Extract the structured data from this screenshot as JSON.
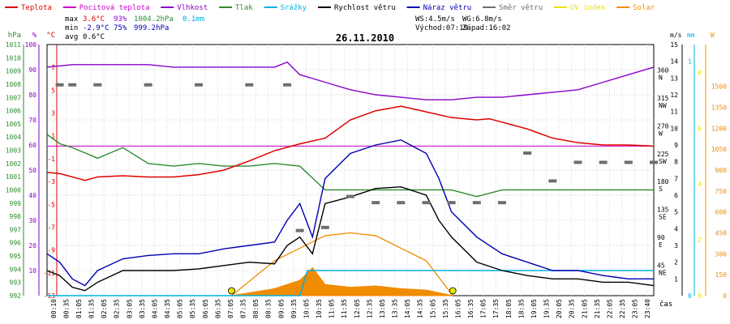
{
  "legend": [
    {
      "label": "Teplota",
      "color": "#dd0000"
    },
    {
      "label": "Pocitová teplota",
      "color": "#cc00cc"
    },
    {
      "label": "Vlhkost",
      "color": "#8a00c8"
    },
    {
      "label": "Tlak",
      "color": "#2e8b2e"
    },
    {
      "label": "Srážky",
      "color": "#00b0e0"
    },
    {
      "label": "Rychlost větru",
      "color": "#000000"
    },
    {
      "label": "Náraz větru",
      "color": "#0000b0"
    },
    {
      "label": "Směr větru",
      "color": "#6e6e6e"
    },
    {
      "label": "UV index",
      "color": "#e6e600"
    },
    {
      "label": "Solar",
      "color": "#f08c00"
    }
  ],
  "stats": {
    "max": {
      "label": "max",
      "temp": "3.6°C",
      "hum": "93%",
      "press": "1004.2hPa",
      "rain": "0.1mm"
    },
    "min": {
      "label": "min",
      "temp": "-2.9°C",
      "hum": "75%",
      "press": "999.2hPa"
    },
    "avg": {
      "label": "avg",
      "temp": "0.6°C"
    }
  },
  "wind_info": {
    "ws": "WS:4.5m/s",
    "wg": "WG:6.8m/s",
    "sunrise": "Východ:07:19",
    "sunset": "Západ:16:02"
  },
  "date": "26.11.2010",
  "x_axis_label": "čas",
  "colors": {
    "temp": "#dd0000",
    "feels": "#cc00cc",
    "hum": "#8a00c8",
    "press": "#2e8b2e",
    "rain": "#00b0e0",
    "wind": "#000000",
    "gust": "#0000b0",
    "dir": "#6e6e6e",
    "uv": "#e6e600",
    "solar": "#f08c00",
    "hpa_axis": "#2e8b2e",
    "pct_axis": "#8a00c8",
    "temp_axis": "#dd0000",
    "ms_axis": "#000000",
    "mm_axis": "#00b0e0",
    "w_axis": "#f08c00",
    "grid": "#c8c8c8",
    "frame": "#000000"
  },
  "chart_data": {
    "type": "line",
    "title": "26.11.2010",
    "x_ticks": [
      "00:10",
      "00:35",
      "01:05",
      "01:35",
      "02:05",
      "02:35",
      "03:05",
      "03:35",
      "04:05",
      "04:35",
      "05:05",
      "05:35",
      "06:05",
      "06:35",
      "07:05",
      "07:35",
      "08:05",
      "08:35",
      "09:05",
      "09:35",
      "10:05",
      "10:35",
      "11:05",
      "11:35",
      "12:05",
      "12:35",
      "13:05",
      "13:35",
      "14:05",
      "14:35",
      "15:05",
      "15:35",
      "16:05",
      "16:35",
      "17:05",
      "17:35",
      "18:05",
      "18:35",
      "19:05",
      "19:35",
      "20:05",
      "20:35",
      "21:05",
      "21:35",
      "22:05",
      "22:35",
      "23:05",
      "23:40"
    ],
    "axes": {
      "hpa": {
        "label": "hPa",
        "ticks": [
          "992",
          "993",
          "994",
          "995",
          "996",
          "997",
          "998",
          "999",
          "1000",
          "1001",
          "1002",
          "1003",
          "1004",
          "1005",
          "1006",
          "1007",
          "1008",
          "1009",
          "1010",
          "1011"
        ],
        "range": [
          992,
          1011
        ]
      },
      "pct": {
        "label": "%",
        "ticks": [
          "10",
          "20",
          "30",
          "40",
          "50",
          "60",
          "70",
          "80",
          "90",
          "100"
        ],
        "range": [
          0,
          100
        ]
      },
      "temp": {
        "label": "°C",
        "ticks": [
          "-13",
          "-11",
          "-9",
          "-7",
          "-5",
          "-3",
          "-1",
          "1",
          "3",
          "5",
          "7"
        ],
        "range": [
          -13,
          9
        ]
      },
      "dir": {
        "ticks": [
          "360",
          "315",
          "270",
          "225",
          "180",
          "135",
          "90",
          "45"
        ],
        "names": [
          "N",
          "NW",
          "W",
          "SW",
          "S",
          "SE",
          "E",
          "NE"
        ],
        "range": [
          0,
          405
        ]
      },
      "ms": {
        "label": "m/s",
        "ticks": [
          "1",
          "2",
          "3",
          "4",
          "5",
          "6",
          "7",
          "8",
          "9",
          "10",
          "11",
          "12",
          "13",
          "14",
          "15"
        ],
        "range": [
          0,
          15
        ]
      },
      "mm": {
        "label": "mm",
        "ticks": [
          "0",
          "1"
        ],
        "range": [
          0,
          1
        ]
      },
      "w": {
        "label": "W",
        "ticks": [
          "0",
          "150",
          "300",
          "450",
          "600",
          "750",
          "900",
          "1050",
          "1200",
          "1350",
          "1500"
        ],
        "range": [
          0,
          1500
        ]
      },
      "uv": {
        "ticks": [
          "0",
          "2",
          "4",
          "6",
          "8"
        ],
        "range": [
          0,
          9
        ]
      }
    },
    "series": [
      {
        "name": "Teplota",
        "unit": "°C",
        "x": [
          0,
          0.5,
          1,
          1.5,
          2,
          3,
          4,
          5,
          6,
          7,
          8,
          9,
          10,
          11,
          12,
          13,
          14,
          15,
          16,
          17,
          17.5,
          18,
          19,
          20,
          21,
          22,
          23,
          24
        ],
        "values": [
          -2.2,
          -2.3,
          -2.6,
          -2.9,
          -2.6,
          -2.5,
          -2.6,
          -2.6,
          -2.4,
          -2.0,
          -1.2,
          -0.3,
          0.3,
          0.8,
          2.4,
          3.2,
          3.6,
          3.1,
          2.6,
          2.4,
          2.5,
          2.2,
          1.6,
          0.8,
          0.4,
          0.2,
          0.2,
          0.1
        ]
      },
      {
        "name": "Vlhkost",
        "unit": "%",
        "x": [
          0,
          1,
          2,
          3,
          4,
          5,
          6,
          7,
          8,
          9,
          9.5,
          10,
          11,
          12,
          13,
          14,
          15,
          16,
          17,
          18,
          19,
          20,
          21,
          22,
          23,
          24
        ],
        "values": [
          91,
          92,
          92,
          92,
          92,
          91,
          91,
          91,
          91,
          91,
          93,
          88,
          85,
          82,
          80,
          79,
          78,
          78,
          79,
          79,
          80,
          81,
          82,
          85,
          88,
          91
        ]
      },
      {
        "name": "Tlak",
        "unit": "hPa",
        "x": [
          0,
          0.5,
          1,
          1.5,
          2,
          3,
          4,
          5,
          6,
          7,
          8,
          9,
          10,
          11,
          12,
          13,
          14,
          15,
          16,
          17,
          18,
          19,
          20,
          21,
          22,
          23,
          24
        ],
        "values": [
          1004.2,
          1003.5,
          1003.2,
          1002.8,
          1002.4,
          1003.2,
          1002.0,
          1001.8,
          1002.0,
          1001.8,
          1001.8,
          1002.0,
          1001.8,
          1000.0,
          1000.0,
          1000.0,
          1000.0,
          1000.0,
          1000.0,
          999.5,
          1000.0,
          1000.0,
          1000.0,
          1000.0,
          1000.0,
          1000.0,
          1000.0
        ]
      },
      {
        "name": "Srážky",
        "unit": "mm",
        "x": [
          0,
          10,
          10.3,
          24
        ],
        "values": [
          0,
          0,
          0.1,
          0.1
        ]
      },
      {
        "name": "Rychlost větru",
        "unit": "m/s",
        "x": [
          0,
          0.5,
          1,
          1.5,
          2,
          3,
          4,
          5,
          6,
          7,
          8,
          9,
          9.5,
          10,
          10.5,
          11,
          12,
          13,
          14,
          15,
          15.5,
          16,
          17,
          18,
          19,
          20,
          21,
          22,
          23,
          24
        ],
        "values": [
          1.5,
          1.2,
          0.5,
          0.3,
          0.8,
          1.5,
          1.5,
          1.5,
          1.6,
          1.8,
          2.0,
          1.9,
          3.0,
          3.5,
          2.5,
          5.5,
          5.9,
          6.4,
          6.5,
          6.0,
          4.5,
          3.5,
          2.0,
          1.5,
          1.2,
          1.0,
          1.0,
          0.8,
          0.8,
          0.6
        ]
      },
      {
        "name": "Náraz větru",
        "unit": "m/s",
        "x": [
          0,
          0.5,
          1,
          1.5,
          2,
          3,
          4,
          5,
          6,
          7,
          8,
          9,
          9.5,
          10,
          10.5,
          11,
          12,
          13,
          14,
          15,
          15.5,
          16,
          17,
          18,
          19,
          20,
          21,
          22,
          23,
          24
        ],
        "values": [
          2.5,
          2.0,
          1.0,
          0.6,
          1.5,
          2.2,
          2.4,
          2.5,
          2.5,
          2.8,
          3.0,
          3.2,
          4.5,
          5.5,
          3.5,
          7.0,
          8.5,
          9.0,
          9.3,
          8.5,
          7.0,
          5.0,
          3.5,
          2.5,
          2.0,
          1.5,
          1.5,
          1.2,
          1.0,
          1.0
        ]
      },
      {
        "name": "Směr větru",
        "unit": "°",
        "x": [
          0.5,
          1,
          2,
          4,
          6,
          8,
          9.5,
          10,
          11,
          12,
          13,
          14,
          15,
          16,
          17,
          18,
          19,
          20,
          21,
          22,
          23,
          24
        ],
        "values": [
          340,
          340,
          340,
          340,
          340,
          340,
          340,
          105,
          110,
          160,
          150,
          150,
          150,
          150,
          150,
          150,
          230,
          185,
          215,
          215,
          215,
          215
        ]
      },
      {
        "name": "Solar",
        "unit": "W/m²",
        "x": [
          7.3,
          8,
          9,
          10,
          10.5,
          11,
          12,
          13,
          14,
          15,
          16.05
        ],
        "values": [
          0,
          20,
          50,
          110,
          200,
          80,
          60,
          70,
          50,
          40,
          0
        ]
      }
    ],
    "sun_curve": {
      "x": [
        7.3,
        9,
        11,
        12,
        13,
        15,
        16.05
      ],
      "values": [
        0,
        250,
        430,
        450,
        430,
        250,
        0
      ]
    },
    "uv_markers": {
      "x": [
        7.3,
        16.05
      ],
      "values": [
        0,
        0
      ]
    }
  }
}
